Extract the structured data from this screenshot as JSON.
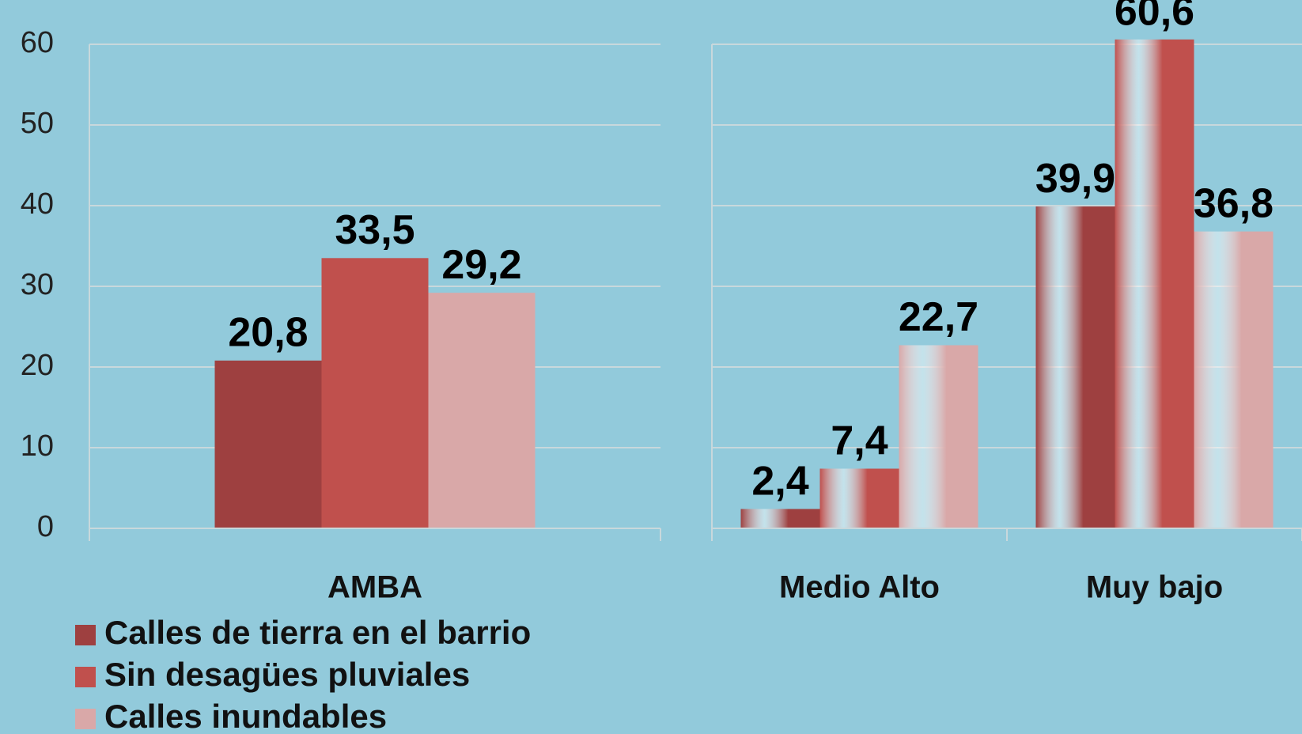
{
  "chart_data": [
    {
      "type": "bar",
      "categories": [
        "AMBA"
      ],
      "series": [
        {
          "name": "Calles de tierra en el barrio",
          "color": "#9e4040",
          "values": [
            20.8
          ],
          "value_labels": [
            "20,8"
          ]
        },
        {
          "name": "Sin desagües pluviales",
          "color": "#c0504d",
          "values": [
            33.5
          ],
          "value_labels": [
            "33,5"
          ]
        },
        {
          "name": "Calles inundables",
          "color": "#d9a8a8",
          "values": [
            29.2
          ],
          "value_labels": [
            "29,2"
          ]
        }
      ],
      "ylim": [
        0,
        60
      ],
      "yticks": [
        0,
        10,
        20,
        30,
        40,
        50,
        60
      ],
      "grid": true,
      "tick_labels": true,
      "gradient": false,
      "legend": "bottom-left"
    },
    {
      "type": "bar",
      "categories": [
        "Medio Alto",
        "Muy bajo"
      ],
      "series": [
        {
          "color": "#9e4040",
          "values": [
            2.4,
            39.9
          ],
          "value_labels": [
            "2,4",
            "39,9"
          ]
        },
        {
          "color": "#c0504d",
          "values": [
            7.4,
            60.6
          ],
          "value_labels": [
            "7,4",
            "60,6"
          ]
        },
        {
          "color": "#d9a8a8",
          "values": [
            22.7,
            36.8
          ],
          "value_labels": [
            "22,7",
            "36,8"
          ]
        }
      ],
      "ylim": [
        0,
        60
      ],
      "yticks": [
        0,
        10,
        20,
        30,
        40,
        50,
        60
      ],
      "grid": true,
      "tick_labels": false,
      "gradient": true
    }
  ]
}
